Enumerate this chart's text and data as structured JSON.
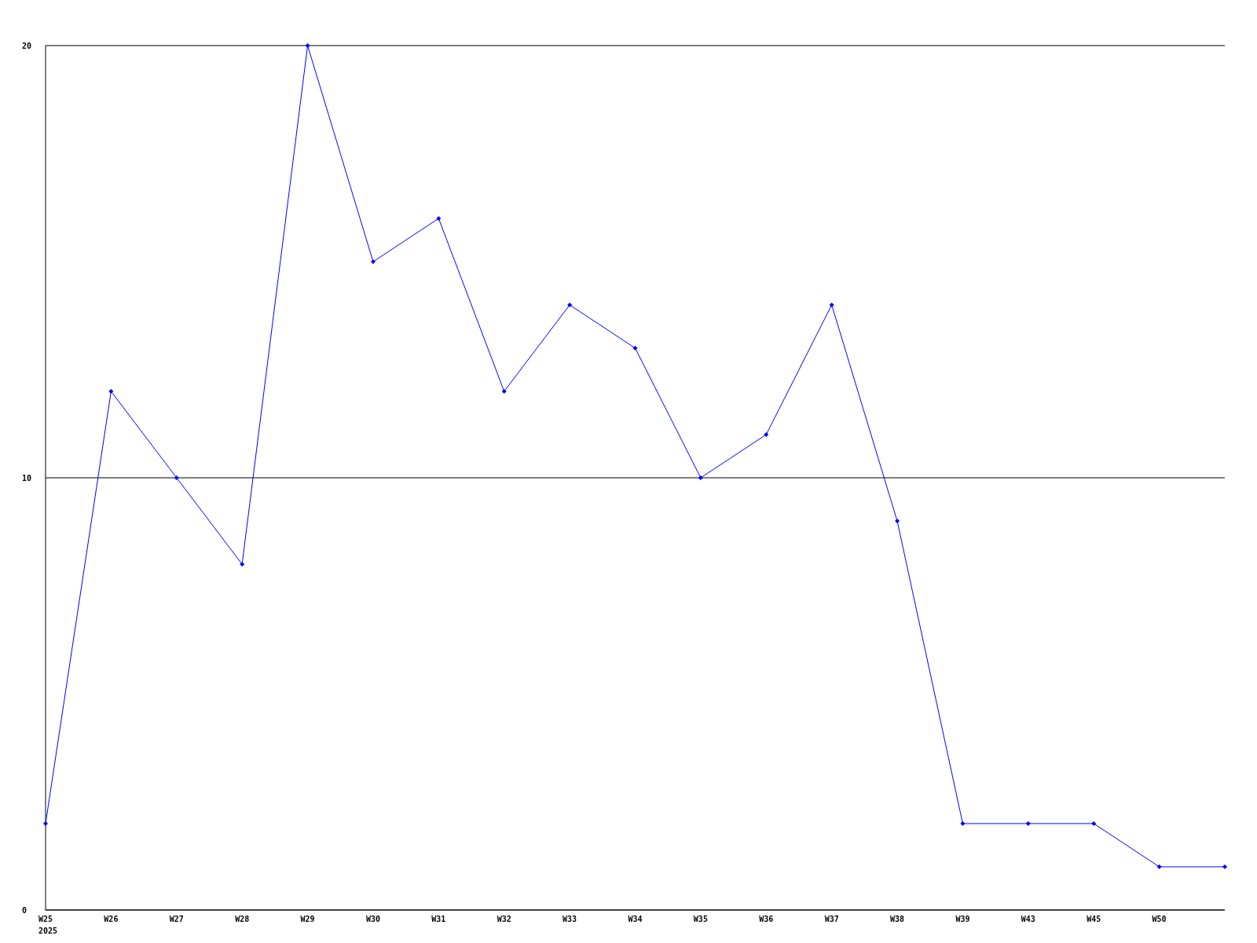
{
  "chart_data": {
    "type": "line",
    "categories": [
      "W25",
      "W26",
      "W27",
      "W28",
      "W29",
      "W30",
      "W31",
      "W32",
      "W33",
      "W34",
      "W35",
      "W36",
      "W37",
      "W38",
      "W39",
      "W43",
      "W45",
      "W50",
      null
    ],
    "series": [
      {
        "color": "#0000ff",
        "values": [
          2,
          12,
          10,
          8,
          20,
          15,
          16,
          12,
          14,
          13,
          10,
          11,
          14,
          9,
          2,
          2,
          2,
          1,
          1
        ]
      }
    ],
    "ylim": [
      0,
      20
    ],
    "yticks": [
      0,
      10,
      20
    ],
    "grid": "y",
    "marker": "diamond",
    "line_style": "solid",
    "annotations": [
      "2025"
    ]
  }
}
